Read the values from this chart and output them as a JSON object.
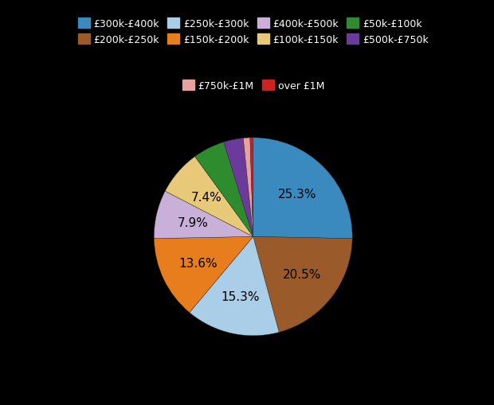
{
  "labels": [
    "£300k-£400k",
    "£200k-£250k",
    "£250k-£300k",
    "£150k-£200k",
    "£400k-£500k",
    "£100k-£150k",
    "£50k-£100k",
    "£500k-£750k",
    "£750k-£1M",
    "over £1M"
  ],
  "values": [
    25.3,
    20.5,
    15.3,
    13.6,
    7.9,
    7.4,
    5.2,
    3.2,
    1.1,
    0.5
  ],
  "colors": [
    "#3a8abf",
    "#9b5a2a",
    "#aacde8",
    "#e87d1e",
    "#c9b0d8",
    "#e8c97a",
    "#2e8b2e",
    "#6b3a9b",
    "#e8a0a0",
    "#cc2222"
  ],
  "background_color": "#000000",
  "text_color": "#ffffff",
  "pct_labels": [
    "25.3%",
    "20.5%",
    "15.3%",
    "13.6%",
    "7.9%",
    "7.4%",
    "",
    "",
    "",
    ""
  ],
  "legend_ncol": 4,
  "figsize": [
    6.2,
    5.1
  ],
  "dpi": 100
}
